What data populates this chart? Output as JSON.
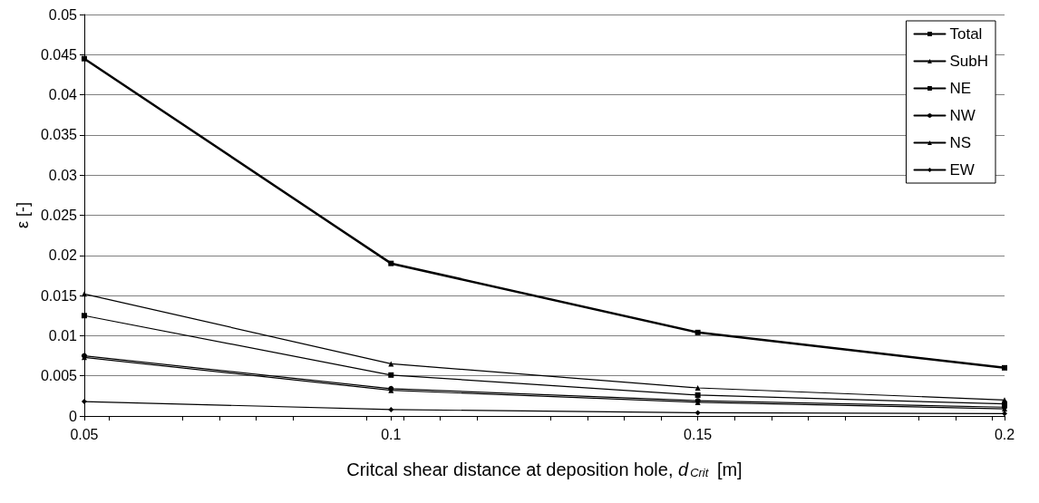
{
  "chart_data": {
    "type": "line",
    "xlabel": "Critcal shear distance at deposition hole, d$_{Crit}$ [m]",
    "ylabel": "ε [-]",
    "x": [
      0.05,
      0.1,
      0.15,
      0.2
    ],
    "series": [
      {
        "name": "Total",
        "color": "#000000",
        "marker": "square",
        "values": [
          0.0445,
          0.019,
          0.0104,
          0.006
        ]
      },
      {
        "name": "SubH",
        "color": "#000000",
        "marker": "triangle",
        "values": [
          0.0152,
          0.0065,
          0.0035,
          0.002
        ]
      },
      {
        "name": "NE",
        "color": "#000000",
        "marker": "square",
        "values": [
          0.0125,
          0.0051,
          0.0026,
          0.0015
        ]
      },
      {
        "name": "NW",
        "color": "#000000",
        "marker": "circle",
        "values": [
          0.0075,
          0.0034,
          0.0019,
          0.0011
        ]
      },
      {
        "name": "NS",
        "color": "#000000",
        "marker": "triangle",
        "values": [
          0.0073,
          0.0032,
          0.0017,
          0.0009
        ]
      },
      {
        "name": "EW",
        "color": "#000000",
        "marker": "diamond",
        "values": [
          0.0018,
          0.0008,
          0.0004,
          0.0003
        ]
      }
    ],
    "xlim": [
      0.05,
      0.2
    ],
    "xticks": [
      0.05,
      0.1,
      0.15,
      0.2
    ],
    "ylim": [
      0,
      0.05
    ],
    "yticks": [
      0,
      0.005,
      0.01,
      0.015,
      0.02,
      0.025,
      0.03,
      0.035,
      0.04,
      0.045,
      0.05
    ],
    "grid": "y",
    "legend": "top right",
    "line_style": "solid"
  }
}
